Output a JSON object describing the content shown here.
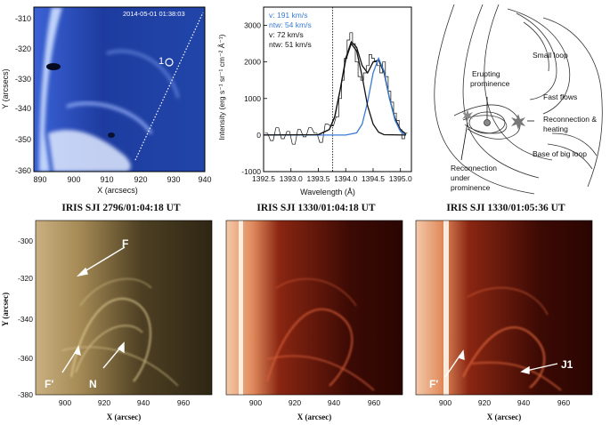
{
  "panel_a": {
    "timestamp": "2014-05-01 01:38:03",
    "marker": "1",
    "xlabel": "X (arcsecs)",
    "ylabel": "Y (arcsecs)",
    "yticks": [
      "-310",
      "-320",
      "-330",
      "-340",
      "-350",
      "-360"
    ],
    "xticks": [
      "890",
      "900",
      "910",
      "920",
      "930",
      "940"
    ]
  },
  "chart_data": {
    "type": "line",
    "xlabel": "Wavelength (Å)",
    "ylabel": "Intensity (erg s⁻¹ sr⁻¹ cm⁻² Å⁻¹)",
    "xlim": [
      1392.5,
      1395.2
    ],
    "ylim": [
      -1000,
      3500
    ],
    "xticks": [
      "1392.5",
      "1393.0",
      "1393.5",
      "1394.0",
      "1394.5",
      "1395.0"
    ],
    "yticks": [
      "3000",
      "2000",
      "1000",
      "0",
      "-1000"
    ],
    "rest_wavelength_line": 1393.76,
    "legend": [
      {
        "text": "v: 191 km/s",
        "color": "#3a7bd5"
      },
      {
        "text": "ntw: 54 km/s",
        "color": "#3a7bd5"
      },
      {
        "text": "v: 72 km/s",
        "color": "#111111"
      },
      {
        "text": "ntw: 51 km/s",
        "color": "#111111"
      }
    ],
    "series": [
      {
        "color": "#111111",
        "style": "histogram",
        "x": [
          1392.55,
          1392.65,
          1392.75,
          1392.85,
          1392.95,
          1393.05,
          1393.15,
          1393.25,
          1393.35,
          1393.45,
          1393.55,
          1393.65,
          1393.75,
          1393.85,
          1393.9,
          1393.95,
          1394.0,
          1394.05,
          1394.1,
          1394.15,
          1394.2,
          1394.25,
          1394.3,
          1394.35,
          1394.4,
          1394.45,
          1394.5,
          1394.55,
          1394.6,
          1394.65,
          1394.7,
          1394.75,
          1394.8,
          1394.85,
          1394.9,
          1394.95,
          1395.0,
          1395.05,
          1395.1
        ],
        "y": [
          50,
          -150,
          200,
          -100,
          100,
          -250,
          150,
          -50,
          200,
          50,
          -200,
          300,
          250,
          500,
          1000,
          1500,
          2100,
          2600,
          2800,
          2500,
          2000,
          1600,
          1500,
          1700,
          1900,
          2200,
          2100,
          2000,
          1900,
          1700,
          2000,
          1600,
          1200,
          900,
          600,
          400,
          150,
          -100,
          50
        ]
      },
      {
        "color": "#111111",
        "style": "fit-total",
        "x": [
          1392.5,
          1393.5,
          1393.7,
          1393.8,
          1393.9,
          1394.0,
          1394.1,
          1394.2,
          1394.3,
          1394.4,
          1394.5,
          1394.6,
          1394.7,
          1394.8,
          1394.9,
          1395.0,
          1395.1
        ],
        "y": [
          0,
          10,
          150,
          500,
          1250,
          2100,
          2550,
          2400,
          1900,
          1700,
          2000,
          2050,
          1700,
          1000,
          450,
          150,
          30
        ]
      },
      {
        "color": "#3a7bd5",
        "style": "fit-component",
        "x": [
          1392.5,
          1394.0,
          1394.2,
          1394.3,
          1394.4,
          1394.5,
          1394.6,
          1394.7,
          1394.8,
          1394.9,
          1395.0,
          1395.1
        ],
        "y": [
          0,
          0,
          60,
          300,
          900,
          1700,
          2100,
          1750,
          1000,
          400,
          100,
          0
        ]
      },
      {
        "color": "#111111",
        "style": "fit-component",
        "x": [
          1392.5,
          1393.5,
          1393.7,
          1393.8,
          1393.9,
          1394.0,
          1394.1,
          1394.2,
          1394.3,
          1394.4,
          1394.5,
          1394.6,
          1394.7,
          1395.1
        ],
        "y": [
          0,
          10,
          150,
          500,
          1250,
          2050,
          2500,
          2300,
          1600,
          800,
          300,
          80,
          10,
          0
        ]
      }
    ]
  },
  "cartoon": {
    "labels": [
      "Small loop",
      "Erupting prominence",
      "Fast flows",
      "Reconnection & heating",
      "Base of big loop",
      "Reconnection under prominence"
    ]
  },
  "sji": [
    {
      "title": "IRIS SJI 2796/01:04:18 UT",
      "labels": [
        "F",
        "F'",
        "N"
      ]
    },
    {
      "title": "IRIS SJI 1330/01:04:18 UT",
      "labels": []
    },
    {
      "title": "IRIS SJI 1330/01:05:36 UT",
      "labels": [
        "F'",
        "J1"
      ]
    }
  ],
  "sji_axes": {
    "yticks": [
      "-300",
      "-320",
      "-340",
      "-360",
      "-380"
    ],
    "xticks": [
      "900",
      "920",
      "940",
      "960"
    ],
    "xlabel": "X (arcsec)",
    "ylabel": "Y (arcsec)"
  },
  "colors": {
    "aia_blue": "#2a4fb8",
    "sji_gold": "#b9a069",
    "sji_red": "#a8321a"
  }
}
